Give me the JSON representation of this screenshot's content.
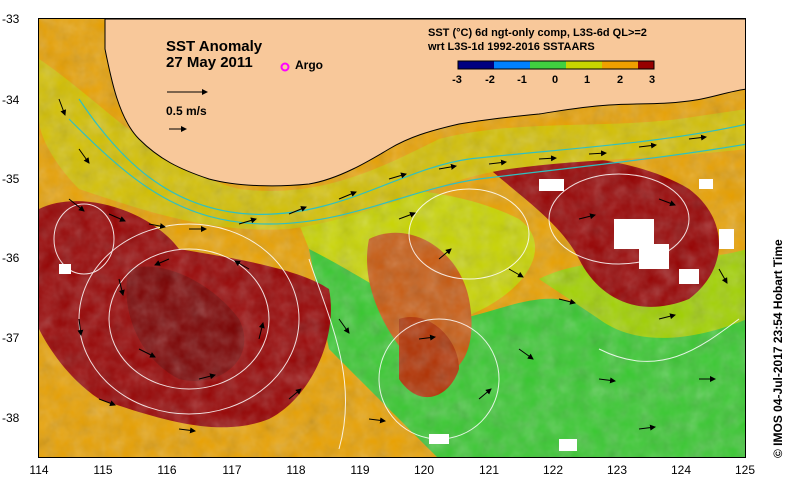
{
  "map": {
    "title": "SST Anomaly",
    "date": "27 May 2011",
    "argo_label": "Argo",
    "scale_label": "0.5 m/s",
    "description_line1": "SST (°C) 6d ngt-only comp, L3S-6d QL>=2",
    "description_line2": "wrt L3S-1d 1992-2016 SSTAARS",
    "credit": "© IMOS 04-Jul-2017 23:54 Hobart Time",
    "colors": {
      "land": "#f8c89a",
      "anom_high": "#960000",
      "anom_mid_high": "#d06000",
      "anom_mid": "#e8a000",
      "anom_low": "#c8d400",
      "anom_zero": "#38c830",
      "current": "#30c0c0",
      "argo": "#ff00ff"
    }
  },
  "axes": {
    "x_ticks": [
      "114",
      "115",
      "116",
      "117",
      "118",
      "119",
      "120",
      "121",
      "122",
      "123",
      "124",
      "125"
    ],
    "y_ticks": [
      "-33",
      "-34",
      "-35",
      "-36",
      "-37",
      "-38"
    ]
  },
  "colorbar": {
    "ticks": [
      "-3",
      "-2",
      "-1",
      "0",
      "1",
      "2",
      "3"
    ],
    "range": [
      -3,
      3
    ]
  }
}
